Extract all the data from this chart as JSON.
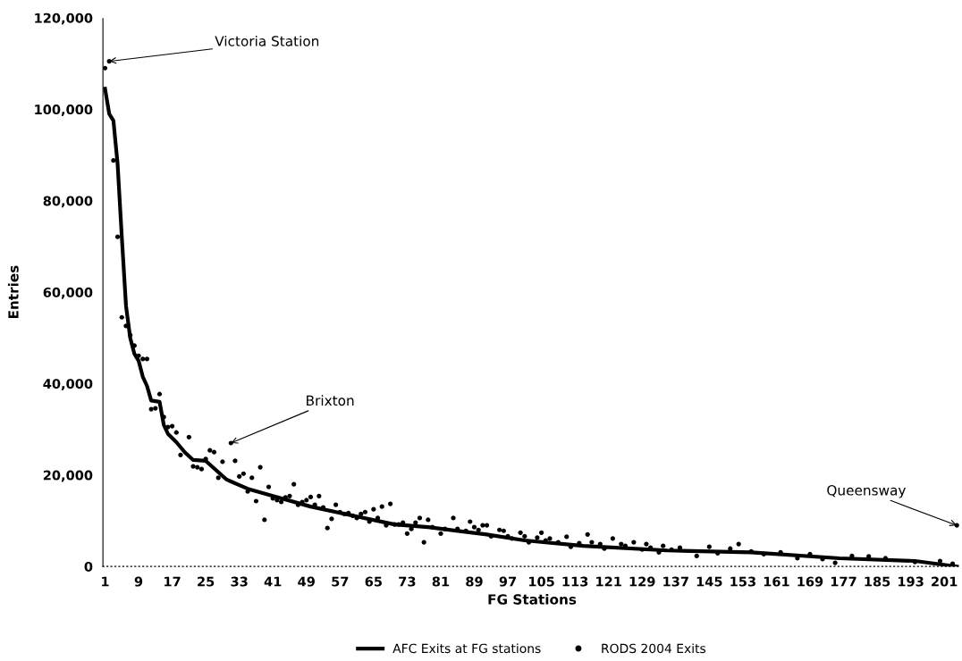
{
  "chart_data": {
    "type": "line",
    "xlabel": "FG Stations",
    "ylabel": "Entries",
    "xlim": [
      0.5,
      205
    ],
    "xticks": [
      1,
      9,
      17,
      25,
      33,
      41,
      49,
      57,
      65,
      73,
      81,
      89,
      97,
      105,
      113,
      121,
      129,
      137,
      145,
      153,
      161,
      169,
      177,
      185,
      193,
      201
    ],
    "ylim": [
      0,
      120000
    ],
    "yticks": [
      {
        "value": 0,
        "label": "0"
      },
      {
        "value": 20000,
        "label": "20,000"
      },
      {
        "value": 40000,
        "label": "40,000"
      },
      {
        "value": 60000,
        "label": "60,000"
      },
      {
        "value": 80000,
        "label": "80,000"
      },
      {
        "value": 100000,
        "label": "100,000"
      },
      {
        "value": 120000,
        "label": "120,000"
      }
    ],
    "grid": false,
    "legend": "bottom",
    "series": [
      {
        "name": "AFC Exits at FG stations",
        "color": "#000000",
        "marker": "none",
        "line_style": "solid",
        "x": [
          1,
          2,
          3,
          4,
          5,
          6,
          7,
          8,
          9,
          10,
          11,
          12,
          14,
          15,
          16,
          18,
          20,
          22,
          25,
          30,
          35,
          41,
          50,
          58,
          70,
          78,
          92,
          101,
          115,
          135,
          155,
          176,
          194,
          204
        ],
        "values": [
          104500,
          99000,
          97500,
          88000,
          72000,
          57000,
          50000,
          46500,
          45000,
          41500,
          39500,
          36300,
          36000,
          31000,
          29000,
          27200,
          25000,
          23300,
          23100,
          19000,
          17000,
          15400,
          13100,
          11500,
          9200,
          8600,
          7000,
          5700,
          4500,
          3500,
          3100,
          1800,
          1200,
          0
        ]
      },
      {
        "name": "RODS 2004 Exits",
        "type": "scatter",
        "color": "#000000",
        "marker": "circle",
        "x": [
          1,
          2,
          3,
          4,
          5,
          6,
          7,
          8,
          9,
          10,
          11,
          12,
          13,
          14,
          15,
          16,
          17,
          18,
          19,
          21,
          22,
          23,
          24,
          25,
          26,
          27,
          28,
          29,
          31,
          32,
          33,
          34,
          35,
          36,
          37,
          38,
          39,
          40,
          41,
          42,
          43,
          44,
          45,
          46,
          47,
          48,
          49,
          50,
          51,
          52,
          53,
          54,
          55,
          56,
          57,
          58,
          59,
          60,
          61,
          62,
          63,
          64,
          65,
          66,
          67,
          68,
          69,
          70,
          71,
          72,
          73,
          74,
          75,
          76,
          77,
          78,
          79,
          81,
          82,
          84,
          85,
          87,
          88,
          89,
          90,
          91,
          92,
          93,
          95,
          96,
          97,
          98,
          100,
          101,
          102,
          104,
          105,
          106,
          107,
          109,
          111,
          112,
          114,
          116,
          117,
          119,
          120,
          122,
          124,
          125,
          127,
          129,
          130,
          131,
          133,
          134,
          136,
          138,
          142,
          145,
          147,
          150,
          152,
          155,
          158,
          162,
          166,
          169,
          172,
          175,
          179,
          183,
          187,
          194,
          200,
          203,
          204
        ],
        "values": [
          109000,
          110500,
          88800,
          72100,
          54500,
          52600,
          50600,
          48300,
          46100,
          45400,
          45400,
          34400,
          34600,
          37700,
          32700,
          30500,
          30700,
          29300,
          24400,
          28300,
          21900,
          21700,
          21300,
          23500,
          25400,
          25000,
          19400,
          22900,
          27000,
          23100,
          19700,
          20300,
          16400,
          19400,
          14300,
          21700,
          10200,
          17400,
          14900,
          14500,
          14100,
          15100,
          15400,
          18000,
          13500,
          14100,
          14500,
          15200,
          13500,
          15400,
          12900,
          8400,
          10400,
          13500,
          11900,
          11500,
          11700,
          11100,
          10600,
          11500,
          11900,
          9800,
          12500,
          10600,
          13100,
          9000,
          13700,
          9200,
          9200,
          9600,
          7200,
          8200,
          9600,
          10600,
          5300,
          10200,
          8600,
          7200,
          8200,
          10600,
          8200,
          7800,
          9800,
          8600,
          8000,
          9000,
          9000,
          6600,
          8000,
          7800,
          6600,
          6100,
          7400,
          6600,
          5300,
          6300,
          7400,
          5700,
          6100,
          5300,
          6500,
          4300,
          5100,
          7000,
          5300,
          4900,
          3900,
          6100,
          4900,
          4500,
          5300,
          3700,
          4900,
          4100,
          3100,
          4500,
          3700,
          4100,
          2300,
          4300,
          2900,
          3900,
          4900,
          3300,
          2700,
          3100,
          1800,
          2700,
          1600,
          800,
          2300,
          2200,
          1800,
          1000,
          1200,
          600,
          9000
        ]
      }
    ],
    "annotations": [
      {
        "text": "Victoria Station",
        "x": 2,
        "y": 110500
      },
      {
        "text": "Brixton",
        "x": 31,
        "y": 27000
      },
      {
        "text": "Queensway",
        "x": 204,
        "y": 9000
      }
    ]
  }
}
